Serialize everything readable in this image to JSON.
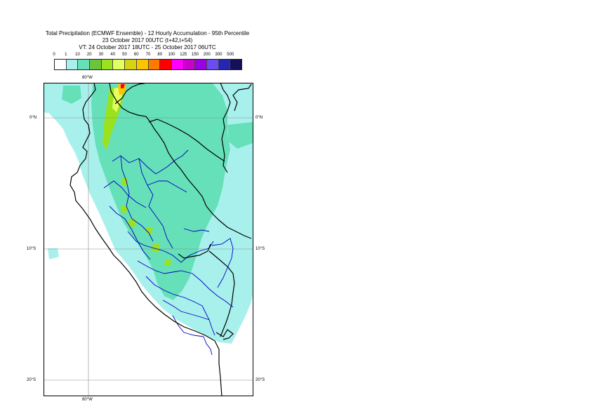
{
  "header": {
    "line1": "Total Precipitation (ECMWF Ensemble) - 12 Hourly Accumulation - 95th Percentile",
    "line2": "23 October 2017 00UTC (t+42,t+54)",
    "line3": "VT: 24 October 2017 18UTC - 25 October 2017 06UTC"
  },
  "legend": {
    "ticks": [
      "0",
      "1",
      "10",
      "20",
      "30",
      "40",
      "50",
      "60",
      "70",
      "80",
      "100",
      "125",
      "150",
      "200",
      "300",
      "500"
    ],
    "colors": [
      "#ffffff",
      "#a8f0ec",
      "#66e0b8",
      "#6cc43c",
      "#9ae21e",
      "#e4ff60",
      "#d4d412",
      "#ffc400",
      "#ff7a00",
      "#ff0000",
      "#ff00ff",
      "#cc00cc",
      "#9a00e6",
      "#6a4cf0",
      "#2426b4",
      "#15105a"
    ]
  },
  "map": {
    "lon_labels": {
      "top": "80°W",
      "bottom": "80°W"
    },
    "lat_labels": [
      "0°N",
      "10°S",
      "20°S"
    ],
    "colors": {
      "coast": "#000000",
      "boundaries": "#0000c0",
      "grid": "#8c8c8c",
      "light": "#a8f0ec",
      "mid": "#66e0b8",
      "green": "#9ae21e",
      "yellow": "#e4ff60",
      "orange": "#ffc400",
      "red": "#ff0000"
    }
  }
}
